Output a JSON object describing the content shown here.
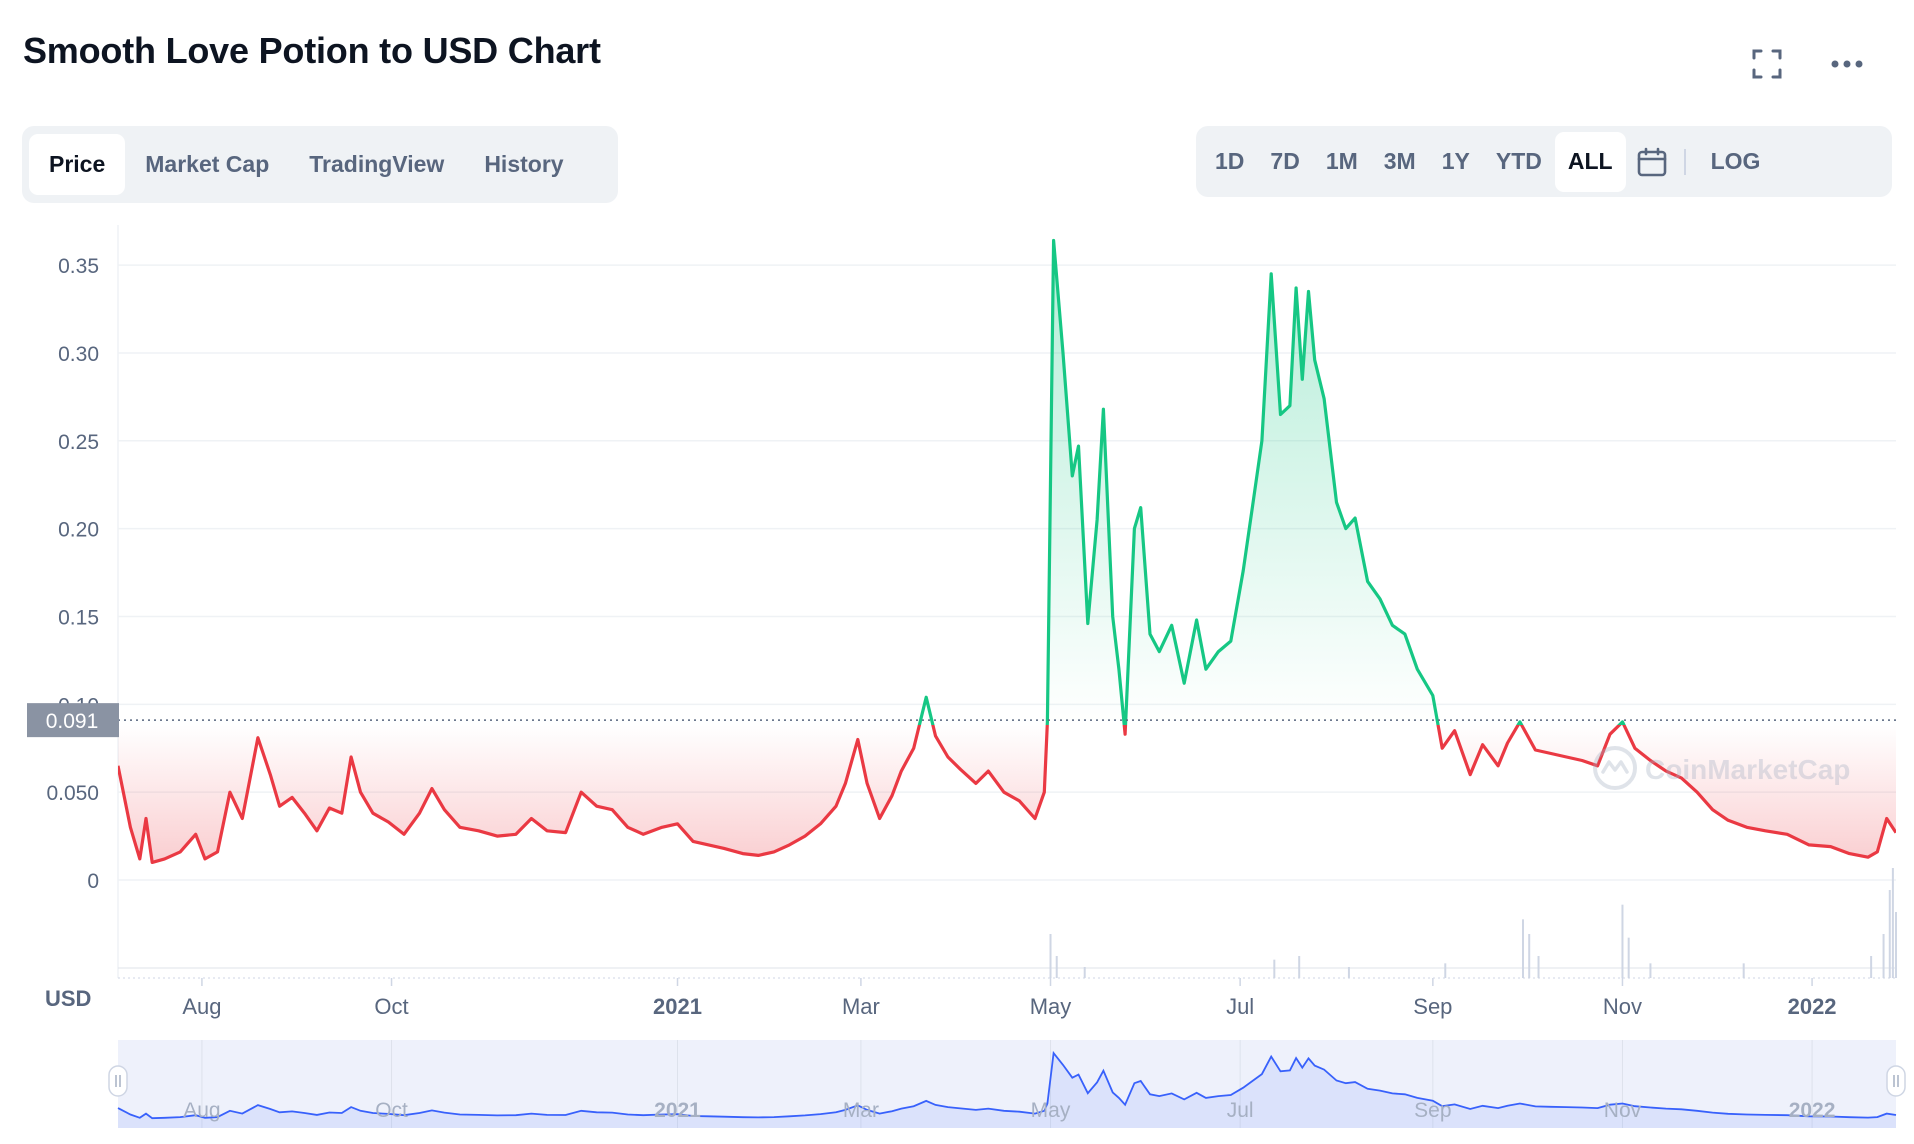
{
  "header": {
    "title": "Smooth Love Potion to USD Chart"
  },
  "tabs": [
    "Price",
    "Market Cap",
    "TradingView",
    "History"
  ],
  "active_tab": "Price",
  "ranges": [
    "1D",
    "7D",
    "1M",
    "3M",
    "1Y",
    "YTD",
    "ALL"
  ],
  "active_range": "ALL",
  "log_label": "LOG",
  "icons": {
    "fullscreen": "fullscreen-icon",
    "more": "more-dots-icon",
    "calendar": "calendar-icon"
  },
  "currency_label": "USD",
  "watermark": "CoinMarketCap",
  "colors": {
    "up": "#16c784",
    "down": "#ea3943",
    "navigator": "#3861fb",
    "text_muted": "#58667e"
  },
  "chart_data": {
    "type": "area",
    "title": "Smooth Love Potion to USD Chart",
    "ylabel": "USD",
    "ylim": [
      0,
      0.35
    ],
    "y_ticks": [
      0,
      0.05,
      0.1,
      0.15,
      0.2,
      0.25,
      0.3,
      0.35
    ],
    "y_tick_labels": [
      "0",
      "0.050",
      "0.10",
      "0.15",
      "0.20",
      "0.25",
      "0.30",
      "0.35"
    ],
    "x_range": [
      "2020-07-05",
      "2022-01-28"
    ],
    "x_ticks": [
      {
        "date": "2020-08-01",
        "label": "Aug",
        "bold": false
      },
      {
        "date": "2020-10-01",
        "label": "Oct",
        "bold": false
      },
      {
        "date": "2021-01-01",
        "label": "2021",
        "bold": true
      },
      {
        "date": "2021-03-01",
        "label": "Mar",
        "bold": false
      },
      {
        "date": "2021-05-01",
        "label": "May",
        "bold": false
      },
      {
        "date": "2021-07-01",
        "label": "Jul",
        "bold": false
      },
      {
        "date": "2021-09-01",
        "label": "Sep",
        "bold": false
      },
      {
        "date": "2021-11-01",
        "label": "Nov",
        "bold": false
      },
      {
        "date": "2022-01-01",
        "label": "2022",
        "bold": true
      }
    ],
    "reference_price": 0.091,
    "reference_label": "0.091",
    "series": [
      {
        "values": [
          [
            "2020-07-05",
            0.065
          ],
          [
            "2020-07-09",
            0.03
          ],
          [
            "2020-07-12",
            0.012
          ],
          [
            "2020-07-14",
            0.035
          ],
          [
            "2020-07-16",
            0.01
          ],
          [
            "2020-07-20",
            0.012
          ],
          [
            "2020-07-25",
            0.016
          ],
          [
            "2020-07-30",
            0.026
          ],
          [
            "2020-08-02",
            0.012
          ],
          [
            "2020-08-06",
            0.016
          ],
          [
            "2020-08-10",
            0.05
          ],
          [
            "2020-08-14",
            0.035
          ],
          [
            "2020-08-19",
            0.081
          ],
          [
            "2020-08-23",
            0.06
          ],
          [
            "2020-08-26",
            0.042
          ],
          [
            "2020-08-30",
            0.047
          ],
          [
            "2020-09-03",
            0.038
          ],
          [
            "2020-09-07",
            0.028
          ],
          [
            "2020-09-11",
            0.041
          ],
          [
            "2020-09-15",
            0.038
          ],
          [
            "2020-09-18",
            0.07
          ],
          [
            "2020-09-21",
            0.05
          ],
          [
            "2020-09-25",
            0.038
          ],
          [
            "2020-09-30",
            0.033
          ],
          [
            "2020-10-05",
            0.026
          ],
          [
            "2020-10-10",
            0.038
          ],
          [
            "2020-10-14",
            0.052
          ],
          [
            "2020-10-18",
            0.04
          ],
          [
            "2020-10-23",
            0.03
          ],
          [
            "2020-10-29",
            0.028
          ],
          [
            "2020-11-04",
            0.025
          ],
          [
            "2020-11-10",
            0.026
          ],
          [
            "2020-11-15",
            0.035
          ],
          [
            "2020-11-20",
            0.028
          ],
          [
            "2020-11-26",
            0.027
          ],
          [
            "2020-12-01",
            0.05
          ],
          [
            "2020-12-06",
            0.042
          ],
          [
            "2020-12-11",
            0.04
          ],
          [
            "2020-12-16",
            0.03
          ],
          [
            "2020-12-21",
            0.026
          ],
          [
            "2020-12-27",
            0.03
          ],
          [
            "2021-01-01",
            0.032
          ],
          [
            "2021-01-06",
            0.022
          ],
          [
            "2021-01-11",
            0.02
          ],
          [
            "2021-01-16",
            0.018
          ],
          [
            "2021-01-22",
            0.015
          ],
          [
            "2021-01-27",
            0.014
          ],
          [
            "2021-02-01",
            0.016
          ],
          [
            "2021-02-06",
            0.02
          ],
          [
            "2021-02-11",
            0.025
          ],
          [
            "2021-02-16",
            0.032
          ],
          [
            "2021-02-21",
            0.042
          ],
          [
            "2021-02-24",
            0.055
          ],
          [
            "2021-02-28",
            0.08
          ],
          [
            "2021-03-03",
            0.055
          ],
          [
            "2021-03-07",
            0.035
          ],
          [
            "2021-03-11",
            0.048
          ],
          [
            "2021-03-14",
            0.062
          ],
          [
            "2021-03-18",
            0.075
          ],
          [
            "2021-03-22",
            0.104
          ],
          [
            "2021-03-25",
            0.082
          ],
          [
            "2021-03-29",
            0.07
          ],
          [
            "2021-04-02",
            0.063
          ],
          [
            "2021-04-07",
            0.055
          ],
          [
            "2021-04-11",
            0.062
          ],
          [
            "2021-04-16",
            0.05
          ],
          [
            "2021-04-21",
            0.045
          ],
          [
            "2021-04-26",
            0.035
          ],
          [
            "2021-04-29",
            0.05
          ],
          [
            "2021-04-30",
            0.09
          ],
          [
            "2021-05-02",
            0.364
          ],
          [
            "2021-05-05",
            0.3
          ],
          [
            "2021-05-08",
            0.23
          ],
          [
            "2021-05-10",
            0.247
          ],
          [
            "2021-05-13",
            0.146
          ],
          [
            "2021-05-16",
            0.205
          ],
          [
            "2021-05-18",
            0.268
          ],
          [
            "2021-05-21",
            0.15
          ],
          [
            "2021-05-23",
            0.12
          ],
          [
            "2021-05-25",
            0.083
          ],
          [
            "2021-05-28",
            0.2
          ],
          [
            "2021-05-30",
            0.212
          ],
          [
            "2021-06-02",
            0.14
          ],
          [
            "2021-06-05",
            0.13
          ],
          [
            "2021-06-09",
            0.145
          ],
          [
            "2021-06-13",
            0.112
          ],
          [
            "2021-06-17",
            0.148
          ],
          [
            "2021-06-20",
            0.12
          ],
          [
            "2021-06-24",
            0.13
          ],
          [
            "2021-06-28",
            0.136
          ],
          [
            "2021-07-02",
            0.176
          ],
          [
            "2021-07-05",
            0.213
          ],
          [
            "2021-07-08",
            0.25
          ],
          [
            "2021-07-11",
            0.345
          ],
          [
            "2021-07-14",
            0.265
          ],
          [
            "2021-07-17",
            0.27
          ],
          [
            "2021-07-19",
            0.337
          ],
          [
            "2021-07-21",
            0.285
          ],
          [
            "2021-07-23",
            0.335
          ],
          [
            "2021-07-25",
            0.296
          ],
          [
            "2021-07-28",
            0.274
          ],
          [
            "2021-08-01",
            0.215
          ],
          [
            "2021-08-04",
            0.2
          ],
          [
            "2021-08-07",
            0.206
          ],
          [
            "2021-08-11",
            0.17
          ],
          [
            "2021-08-15",
            0.16
          ],
          [
            "2021-08-19",
            0.145
          ],
          [
            "2021-08-23",
            0.14
          ],
          [
            "2021-08-27",
            0.12
          ],
          [
            "2021-09-01",
            0.105
          ],
          [
            "2021-09-04",
            0.075
          ],
          [
            "2021-09-08",
            0.085
          ],
          [
            "2021-09-13",
            0.06
          ],
          [
            "2021-09-17",
            0.077
          ],
          [
            "2021-09-22",
            0.065
          ],
          [
            "2021-09-25",
            0.078
          ],
          [
            "2021-09-29",
            0.09
          ],
          [
            "2021-10-04",
            0.074
          ],
          [
            "2021-10-09",
            0.072
          ],
          [
            "2021-10-14",
            0.07
          ],
          [
            "2021-10-19",
            0.068
          ],
          [
            "2021-10-24",
            0.065
          ],
          [
            "2021-10-28",
            0.083
          ],
          [
            "2021-11-01",
            0.09
          ],
          [
            "2021-11-05",
            0.075
          ],
          [
            "2021-11-10",
            0.068
          ],
          [
            "2021-11-15",
            0.062
          ],
          [
            "2021-11-20",
            0.058
          ],
          [
            "2021-11-25",
            0.05
          ],
          [
            "2021-11-30",
            0.04
          ],
          [
            "2021-12-05",
            0.034
          ],
          [
            "2021-12-11",
            0.03
          ],
          [
            "2021-12-17",
            0.028
          ],
          [
            "2021-12-24",
            0.026
          ],
          [
            "2021-12-31",
            0.02
          ],
          [
            "2022-01-07",
            0.019
          ],
          [
            "2022-01-13",
            0.015
          ],
          [
            "2022-01-19",
            0.013
          ],
          [
            "2022-01-22",
            0.016
          ],
          [
            "2022-01-25",
            0.035
          ],
          [
            "2022-01-28",
            0.027
          ]
        ]
      }
    ],
    "volume": [
      [
        "2021-05-01",
        0.6
      ],
      [
        "2021-05-03",
        0.3
      ],
      [
        "2021-05-12",
        0.15
      ],
      [
        "2021-07-12",
        0.25
      ],
      [
        "2021-07-20",
        0.3
      ],
      [
        "2021-08-05",
        0.15
      ],
      [
        "2021-09-05",
        0.2
      ],
      [
        "2021-09-30",
        0.8
      ],
      [
        "2021-10-02",
        0.6
      ],
      [
        "2021-10-05",
        0.3
      ],
      [
        "2021-11-01",
        1.0
      ],
      [
        "2021-11-03",
        0.55
      ],
      [
        "2021-11-10",
        0.2
      ],
      [
        "2021-12-10",
        0.2
      ],
      [
        "2022-01-20",
        0.3
      ],
      [
        "2022-01-24",
        0.6
      ],
      [
        "2022-01-26",
        1.2
      ],
      [
        "2022-01-27",
        1.5
      ],
      [
        "2022-01-28",
        0.9
      ]
    ]
  }
}
